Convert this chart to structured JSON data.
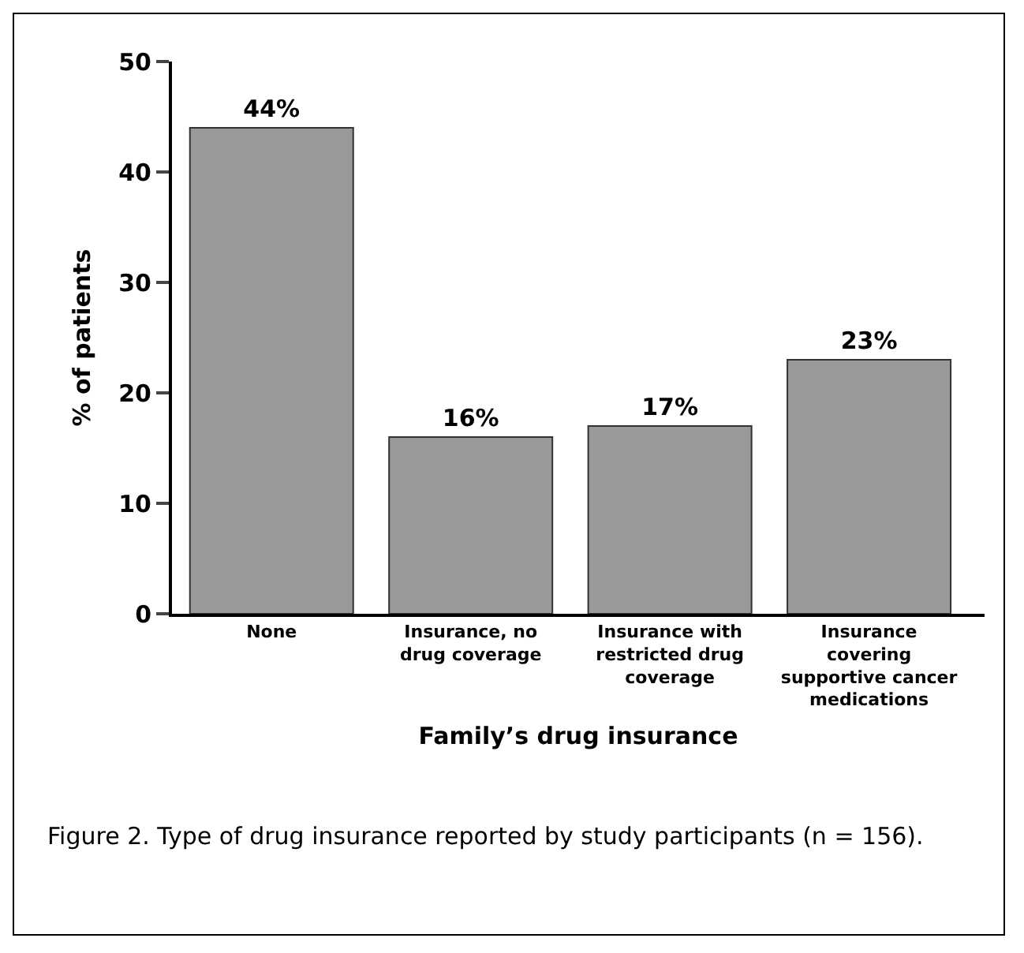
{
  "chart_data": {
    "type": "bar",
    "categories": [
      "None",
      "Insurance, no drug coverage",
      "Insurance with restricted drug coverage",
      "Insurance covering supportive cancer medications"
    ],
    "values": [
      44,
      16,
      17,
      23
    ],
    "value_labels": [
      "44%",
      "16%",
      "17%",
      "23%"
    ],
    "color": "#999999",
    "xlabel": "Family’s drug insurance",
    "ylabel": "% of patients",
    "ylim": [
      0,
      50
    ],
    "yticks": [
      0,
      10,
      20,
      30,
      40,
      50
    ],
    "annotations": [
      "Figure 2. Type of drug insurance reported by study participants (n = 156)."
    ]
  }
}
